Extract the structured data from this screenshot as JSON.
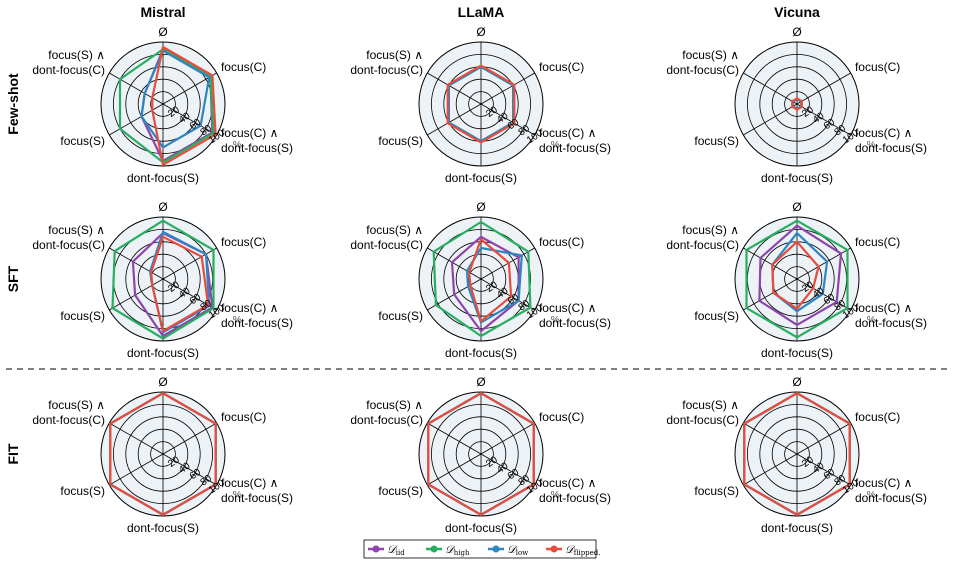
{
  "chart_data": {
    "type": "radar",
    "columns": [
      "Mistral",
      "LLaMA",
      "Vicuna"
    ],
    "rows": [
      "Few-shot",
      "SFT",
      "FIT"
    ],
    "axes": [
      "Ø",
      "focus(C)",
      "focus(C) ∧\ndont-focus(S)",
      "dont-focus(S)",
      "focus(S)",
      "focus(S) ∧\ndont-focus(C)"
    ],
    "radial_ticks": [
      20,
      40,
      60,
      80,
      100
    ],
    "radial_unit": "%",
    "radial_range": [
      0,
      100
    ],
    "legend": [
      {
        "key": "iid",
        "base": "𝒟",
        "sub": "iid",
        "color": "#8e44ad"
      },
      {
        "key": "high",
        "base": "𝒟",
        "sub": "high",
        "color": "#27ae60"
      },
      {
        "key": "low",
        "base": "𝒟",
        "sub": "low",
        "color": "#2e86c1"
      },
      {
        "key": "flipped",
        "base": "𝒟",
        "sub": "flipped.",
        "color": "#e74c3c"
      }
    ],
    "panels": [
      {
        "row": "Few-shot",
        "col": "Mistral",
        "series": {
          "iid": [
            88,
            88,
            92,
            92,
            40,
            34
          ],
          "high": [
            88,
            88,
            94,
            94,
            80,
            80
          ],
          "low": [
            86,
            86,
            70,
            70,
            40,
            34
          ],
          "flipped": [
            92,
            92,
            98,
            98,
            20,
            20
          ]
        }
      },
      {
        "row": "Few-shot",
        "col": "LLaMA",
        "series": {
          "iid": [
            60,
            60,
            60,
            60,
            60,
            60
          ],
          "high": [
            60,
            60,
            60,
            60,
            60,
            60
          ],
          "low": [
            60,
            60,
            60,
            60,
            60,
            60
          ],
          "flipped": [
            62,
            62,
            62,
            62,
            62,
            62
          ]
        }
      },
      {
        "row": "Few-shot",
        "col": "Vicuna",
        "series": {
          "iid": [
            8,
            8,
            8,
            8,
            8,
            8
          ],
          "high": [
            8,
            8,
            8,
            8,
            8,
            8
          ],
          "low": [
            8,
            8,
            8,
            8,
            8,
            8
          ],
          "flipped": [
            9,
            9,
            9,
            9,
            9,
            9
          ]
        }
      },
      {
        "row": "SFT",
        "col": "Mistral",
        "series": {
          "iid": [
            74,
            80,
            92,
            92,
            52,
            56
          ],
          "high": [
            94,
            94,
            94,
            96,
            94,
            90
          ],
          "low": [
            76,
            80,
            86,
            86,
            20,
            24
          ],
          "flipped": [
            68,
            72,
            84,
            84,
            20,
            22
          ]
        }
      },
      {
        "row": "SFT",
        "col": "LLaMA",
        "series": {
          "iid": [
            68,
            70,
            70,
            84,
            50,
            54
          ],
          "high": [
            92,
            88,
            92,
            92,
            84,
            88
          ],
          "low": [
            50,
            76,
            70,
            70,
            24,
            26
          ],
          "flipped": [
            64,
            52,
            56,
            68,
            20,
            22
          ]
        }
      },
      {
        "row": "SFT",
        "col": "Vicuna",
        "series": {
          "iid": [
            86,
            82,
            74,
            74,
            70,
            68
          ],
          "high": [
            94,
            94,
            94,
            94,
            94,
            94
          ],
          "low": [
            74,
            56,
            48,
            52,
            44,
            46
          ],
          "flipped": [
            60,
            40,
            30,
            48,
            44,
            46
          ]
        }
      },
      {
        "row": "FIT",
        "col": "Mistral",
        "series": {
          "iid": [
            98,
            98,
            98,
            98,
            98,
            98
          ],
          "high": [
            98,
            98,
            98,
            98,
            98,
            98
          ],
          "low": [
            98,
            98,
            98,
            98,
            98,
            98
          ],
          "flipped": [
            98,
            98,
            98,
            98,
            98,
            98
          ]
        }
      },
      {
        "row": "FIT",
        "col": "LLaMA",
        "series": {
          "iid": [
            98,
            98,
            98,
            98,
            98,
            98
          ],
          "high": [
            98,
            98,
            98,
            98,
            98,
            98
          ],
          "low": [
            98,
            98,
            98,
            98,
            98,
            98
          ],
          "flipped": [
            98,
            98,
            98,
            98,
            98,
            98
          ]
        }
      },
      {
        "row": "FIT",
        "col": "Vicuna",
        "series": {
          "iid": [
            98,
            98,
            98,
            98,
            98,
            98
          ],
          "high": [
            98,
            98,
            98,
            98,
            98,
            98
          ],
          "low": [
            98,
            98,
            98,
            98,
            98,
            98
          ],
          "flipped": [
            98,
            98,
            98,
            98,
            98,
            98
          ]
        }
      }
    ],
    "grid": true,
    "separator_after_row": "SFT",
    "legend_placement": "bottom-center"
  }
}
